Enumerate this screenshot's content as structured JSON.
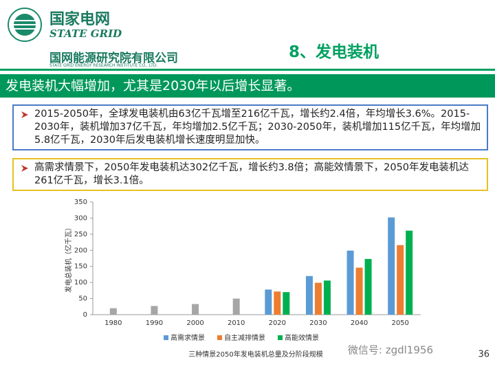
{
  "header": {
    "logo_name": "国家电网",
    "logo_english": "STATE GRID",
    "institute": "国网能源研究院有限公司",
    "institute_english": "STATE GRID ENERGY RESEARCH INSTITUTE CO., LTD.",
    "section_title": "8、发电装机"
  },
  "banner": "发电装机大幅增加，尤其是2030年以后增长显著。",
  "box1": {
    "items": [
      "2015-2050年，全球发电装机由63亿千瓦增至216亿千瓦，增长约2.4倍，年均增长3.6%。2015-2030年，装机增加37亿千瓦，年均增加2.5亿千瓦；2030-2050年，装机增加115亿千瓦，年均增加5.8亿千瓦，2030年后发电装机增长速度明显加快。"
    ]
  },
  "box2": {
    "items": [
      "高需求情景下，2050年发电装机达302亿千瓦，增长约3.8倍；高能效情景下，2050年发电装机达261亿千瓦，增长3.1倍。"
    ]
  },
  "chart_data": {
    "type": "bar",
    "caption": "三种情景2050年发电装机总量及分阶段规模",
    "y_label": "发电总装机（亿千瓦）",
    "categories": [
      "1980",
      "1990",
      "2000",
      "2010",
      "2020",
      "2030",
      "2040",
      "2050"
    ],
    "series": [
      {
        "color": "#a6a6a6",
        "values": [
          20,
          27,
          33,
          50,
          null,
          null,
          null,
          null
        ]
      },
      {
        "name": "高需求情景",
        "color": "#5b9bd5",
        "values": [
          null,
          null,
          null,
          null,
          78,
          120,
          199,
          302
        ]
      },
      {
        "name": "自主减排情景",
        "color": "#ed7d31",
        "values": [
          null,
          null,
          null,
          null,
          72,
          99,
          146,
          216
        ]
      },
      {
        "name": "高能效情景",
        "color": "#00b050",
        "values": [
          null,
          null,
          null,
          null,
          70,
          106,
          173,
          261
        ]
      }
    ],
    "ylim": [
      0,
      350
    ],
    "yticks": [
      0,
      50,
      100,
      150,
      200,
      250,
      300,
      350
    ],
    "grid": false
  },
  "footer": {
    "watermark": "微信号: zgdl1956",
    "page": "36"
  }
}
